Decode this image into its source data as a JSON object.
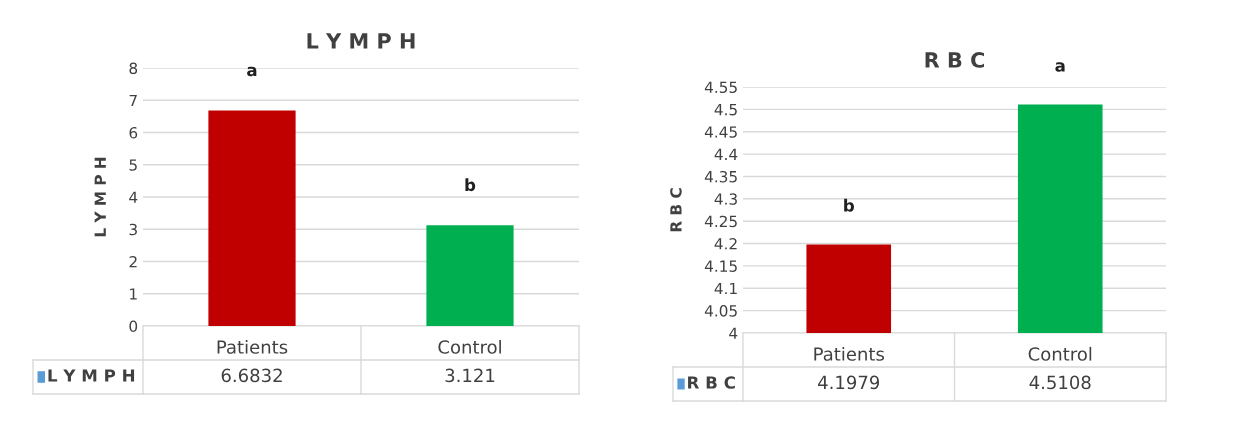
{
  "chart_data": [
    {
      "type": "bar",
      "title": "L Y M P H",
      "ylabel": "L Y M P H",
      "categories": [
        "Patients",
        "Control"
      ],
      "series": [
        {
          "name": "L Y M P H",
          "color": "#5b9bd5",
          "colors": [
            "#c00000",
            "#00b050"
          ],
          "values": [
            6.6832,
            3.121
          ]
        }
      ],
      "ylim": [
        0,
        8
      ],
      "yticks": [
        0,
        1,
        2,
        3,
        4,
        5,
        6,
        7,
        8
      ],
      "grid": "y",
      "data_labels": true,
      "annotations": [
        "a",
        "b"
      ]
    },
    {
      "type": "bar",
      "title": "R B C",
      "ylabel": "R B C",
      "categories": [
        "Patients",
        "Control"
      ],
      "series": [
        {
          "name": "R B C",
          "color": "#5b9bd5",
          "colors": [
            "#c00000",
            "#00b050"
          ],
          "values": [
            4.1979,
            4.5108
          ]
        }
      ],
      "ylim": [
        4,
        4.55
      ],
      "yticks": [
        4,
        4.05,
        4.1,
        4.15,
        4.2,
        4.25,
        4.3,
        4.35,
        4.4,
        4.45,
        4.5,
        4.55
      ],
      "grid": "y",
      "data_labels": true,
      "annotations": [
        "b",
        "a"
      ]
    }
  ]
}
